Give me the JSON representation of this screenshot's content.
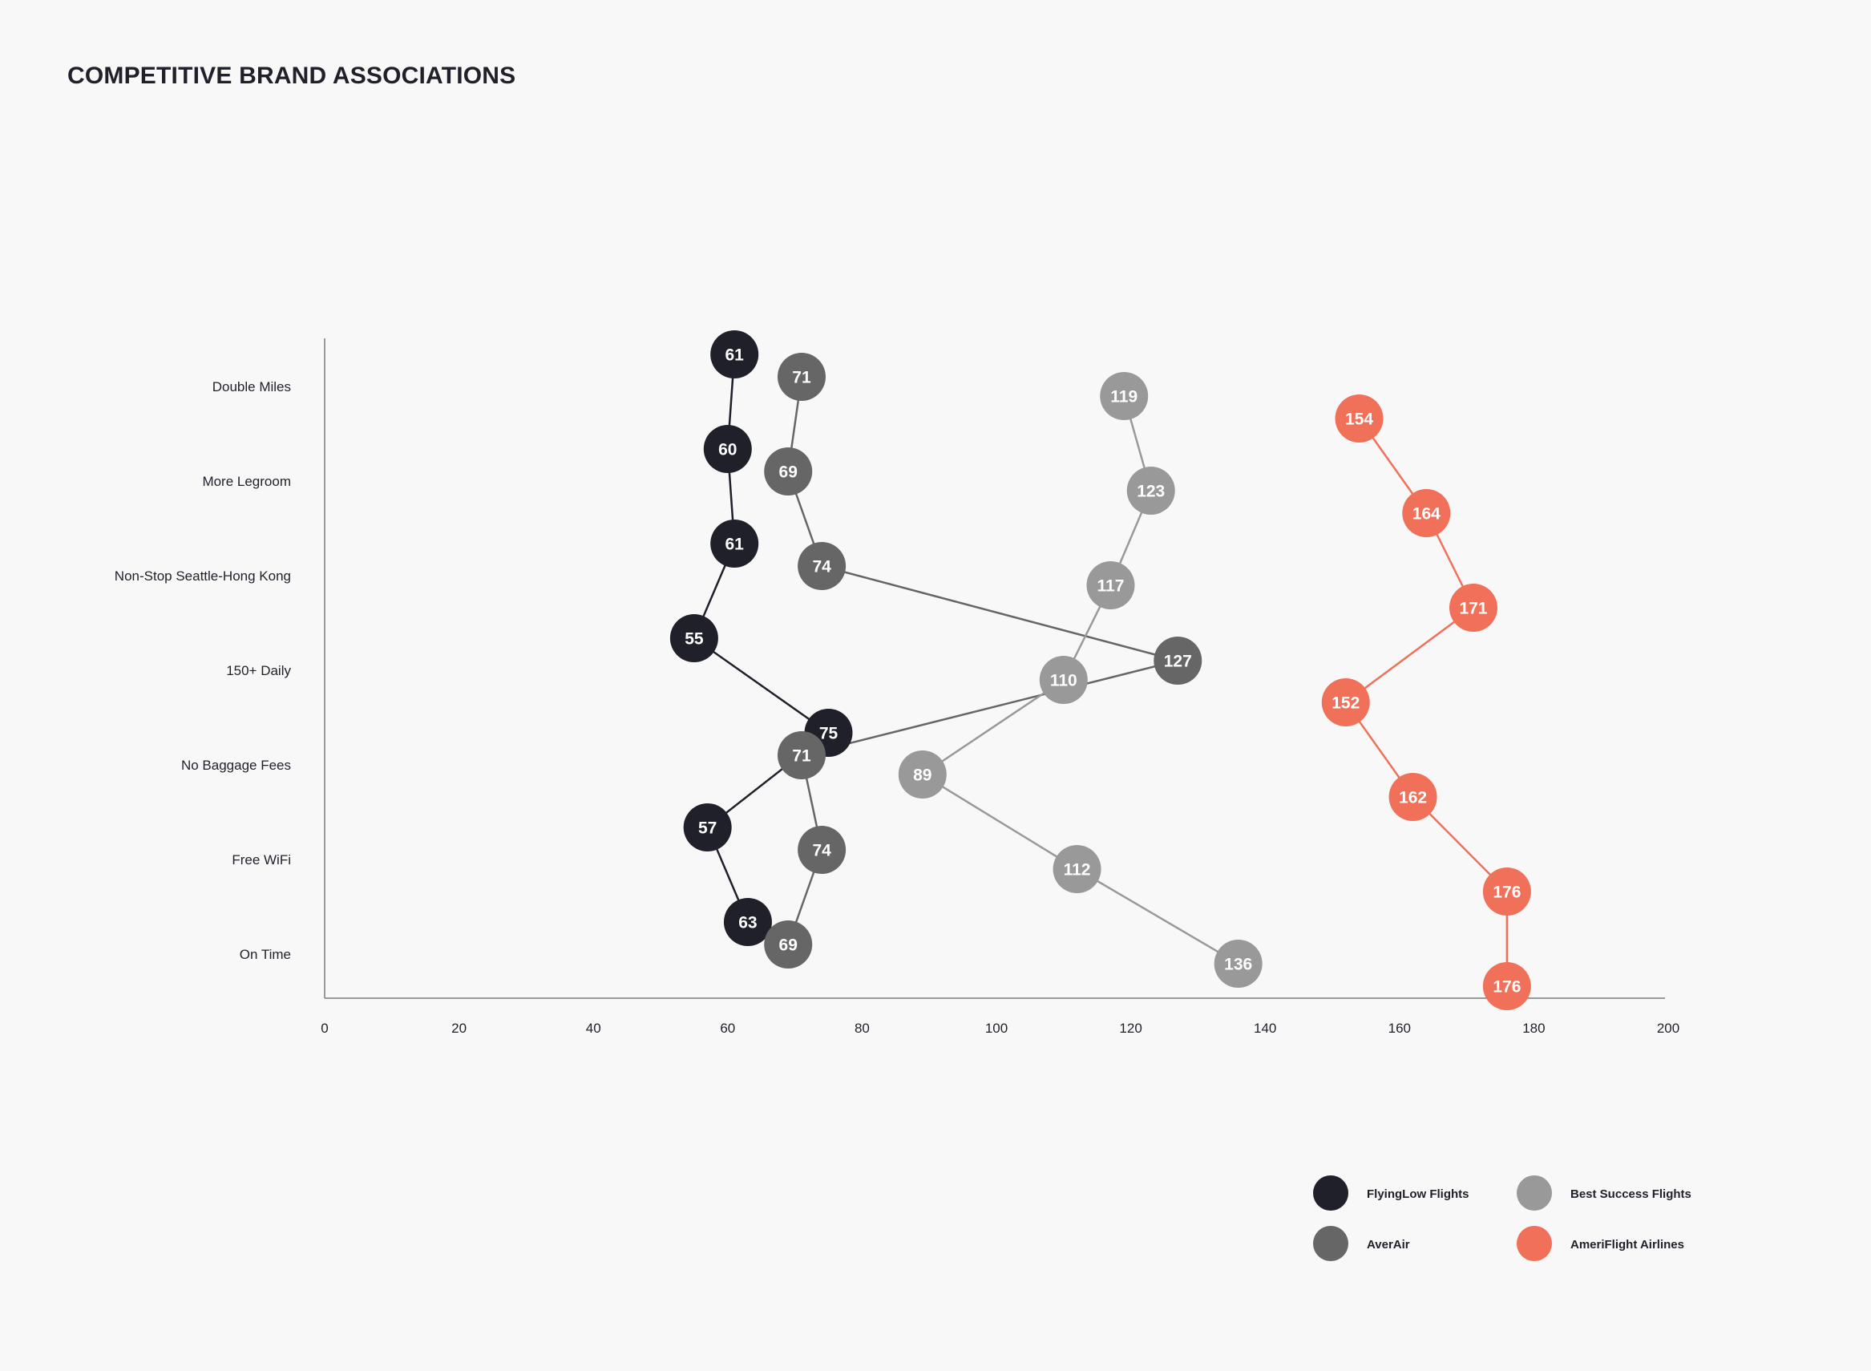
{
  "chart_data": {
    "type": "line",
    "title": "COMPETITIVE BRAND ASSOCIATIONS",
    "categories": [
      "Double Miles",
      "More Legroom",
      "Non-Stop Seattle-Hong Kong",
      "150+ Daily",
      "No Baggage Fees",
      "Free WiFi",
      "On Time"
    ],
    "xlim": [
      0,
      200
    ],
    "x_ticks": [
      0,
      20,
      40,
      60,
      80,
      100,
      120,
      140,
      160,
      180,
      200
    ],
    "xlabel": "",
    "ylabel": "",
    "grid": false,
    "legend_position": "bottom-right",
    "series": [
      {
        "name": "FlyingLow Flights",
        "color": "#1f2029",
        "values": [
          61,
          60,
          61,
          55,
          75,
          57,
          63
        ]
      },
      {
        "name": "AverAir",
        "color": "#666666",
        "values": [
          71,
          69,
          74,
          127,
          71,
          74,
          69
        ]
      },
      {
        "name": "Best Success Flights",
        "color": "#999999",
        "values": [
          119,
          123,
          117,
          110,
          89,
          112,
          136
        ]
      },
      {
        "name": "AmeriFlight Airlines",
        "color": "#f07059",
        "values": [
          154,
          164,
          171,
          152,
          162,
          176,
          176
        ]
      }
    ]
  }
}
